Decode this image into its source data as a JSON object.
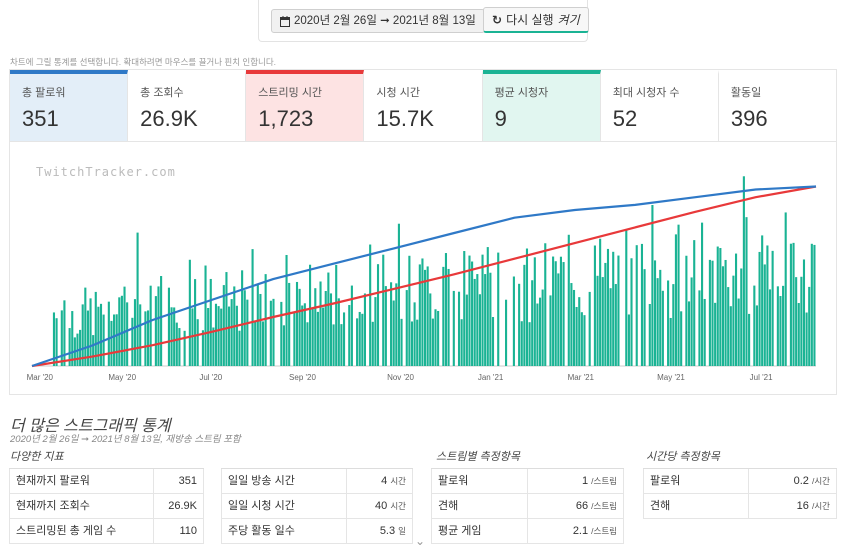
{
  "header": {
    "date_range": "2020년 2월 26일 ➞ 2021년 8월 13일",
    "rerun_label": "다시 실행",
    "rerun_toggle": "켜기"
  },
  "hint": "차트에 그릴 통계를 선택합니다. 확대하려면 마우스를 끌거나 핀치 인합니다.",
  "stats": [
    {
      "label": "총 팔로워",
      "value": "351",
      "state": "blue"
    },
    {
      "label": "총 조회수",
      "value": "26.9K",
      "state": ""
    },
    {
      "label": "스트리밍 시간",
      "value": "1,723",
      "state": "red"
    },
    {
      "label": "시청 시간",
      "value": "15.7K",
      "state": ""
    },
    {
      "label": "평균 시청자",
      "value": "9",
      "state": "green"
    },
    {
      "label": "최대 시청자 수",
      "value": "52",
      "state": ""
    },
    {
      "label": "활동일",
      "value": "396",
      "state": ""
    }
  ],
  "chart_data": {
    "type": "bar",
    "watermark": "TwitchTracker.com",
    "x_ticks": [
      "Mar '20",
      "May '20",
      "Jul '20",
      "Sep '20",
      "Nov '20",
      "Jan '21",
      "Mar '21",
      "May '21",
      "Jul '21"
    ],
    "colors": {
      "bars": "#1ab394",
      "followers": "#2f79c7",
      "hours": "#e8393a"
    },
    "series": [
      {
        "name": "평균 시청자",
        "kind": "bar",
        "values": "daily bars, roughly 5–15 early rising to 10–25 later (estimated)"
      },
      {
        "name": "총 팔로워",
        "kind": "line",
        "values": [
          0,
          40,
          90,
          130,
          170,
          200,
          230,
          260,
          290,
          305,
          315,
          330,
          345,
          351
        ]
      },
      {
        "name": "스트리밍 시간",
        "kind": "line",
        "values": [
          0,
          90,
          200,
          330,
          470,
          600,
          740,
          880,
          1030,
          1180,
          1330,
          1480,
          1620,
          1723
        ]
      }
    ],
    "series_x": [
      "Feb '20",
      "Mar '20",
      "May '20",
      "Jul '20",
      "Sep '20",
      "Nov '20",
      "Dec '20",
      "Jan '21",
      "Feb '21",
      "Mar '21",
      "May '21",
      "Jun '21",
      "Jul '21",
      "Aug '21"
    ]
  },
  "more": {
    "title": "더 많은 스트그래픽 통계",
    "subtitle": "2020년 2월 26일 ➞ 2021년 8월 13일, 재방송 스트림 포함"
  },
  "sections": [
    {
      "heading": "다양한 지표",
      "rows": [
        {
          "k": "현재까지 팔로워",
          "v": "351",
          "u": ""
        },
        {
          "k": "현재까지 조회수",
          "v": "26.9K",
          "u": ""
        },
        {
          "k": "스트리밍된 총 게임 수",
          "v": "110",
          "u": ""
        }
      ]
    },
    {
      "heading": "",
      "rows": [
        {
          "k": "일일 방송 시간",
          "v": "4",
          "u": "시간"
        },
        {
          "k": "일일 시청 시간",
          "v": "40",
          "u": "시간"
        },
        {
          "k": "주당 활동 일수",
          "v": "5.3",
          "u": "일"
        }
      ]
    },
    {
      "heading": "스트림별 측정항목",
      "rows": [
        {
          "k": "팔로워",
          "v": "1",
          "u": "/스트림"
        },
        {
          "k": "견해",
          "v": "66",
          "u": "/스트림"
        },
        {
          "k": "평균 게임",
          "v": "2.1",
          "u": "/스트림"
        }
      ]
    },
    {
      "heading": "시간당 측정항목",
      "rows": [
        {
          "k": "팔로워",
          "v": "0.2",
          "u": "/시간"
        },
        {
          "k": "견해",
          "v": "16",
          "u": "/시간"
        }
      ]
    }
  ]
}
